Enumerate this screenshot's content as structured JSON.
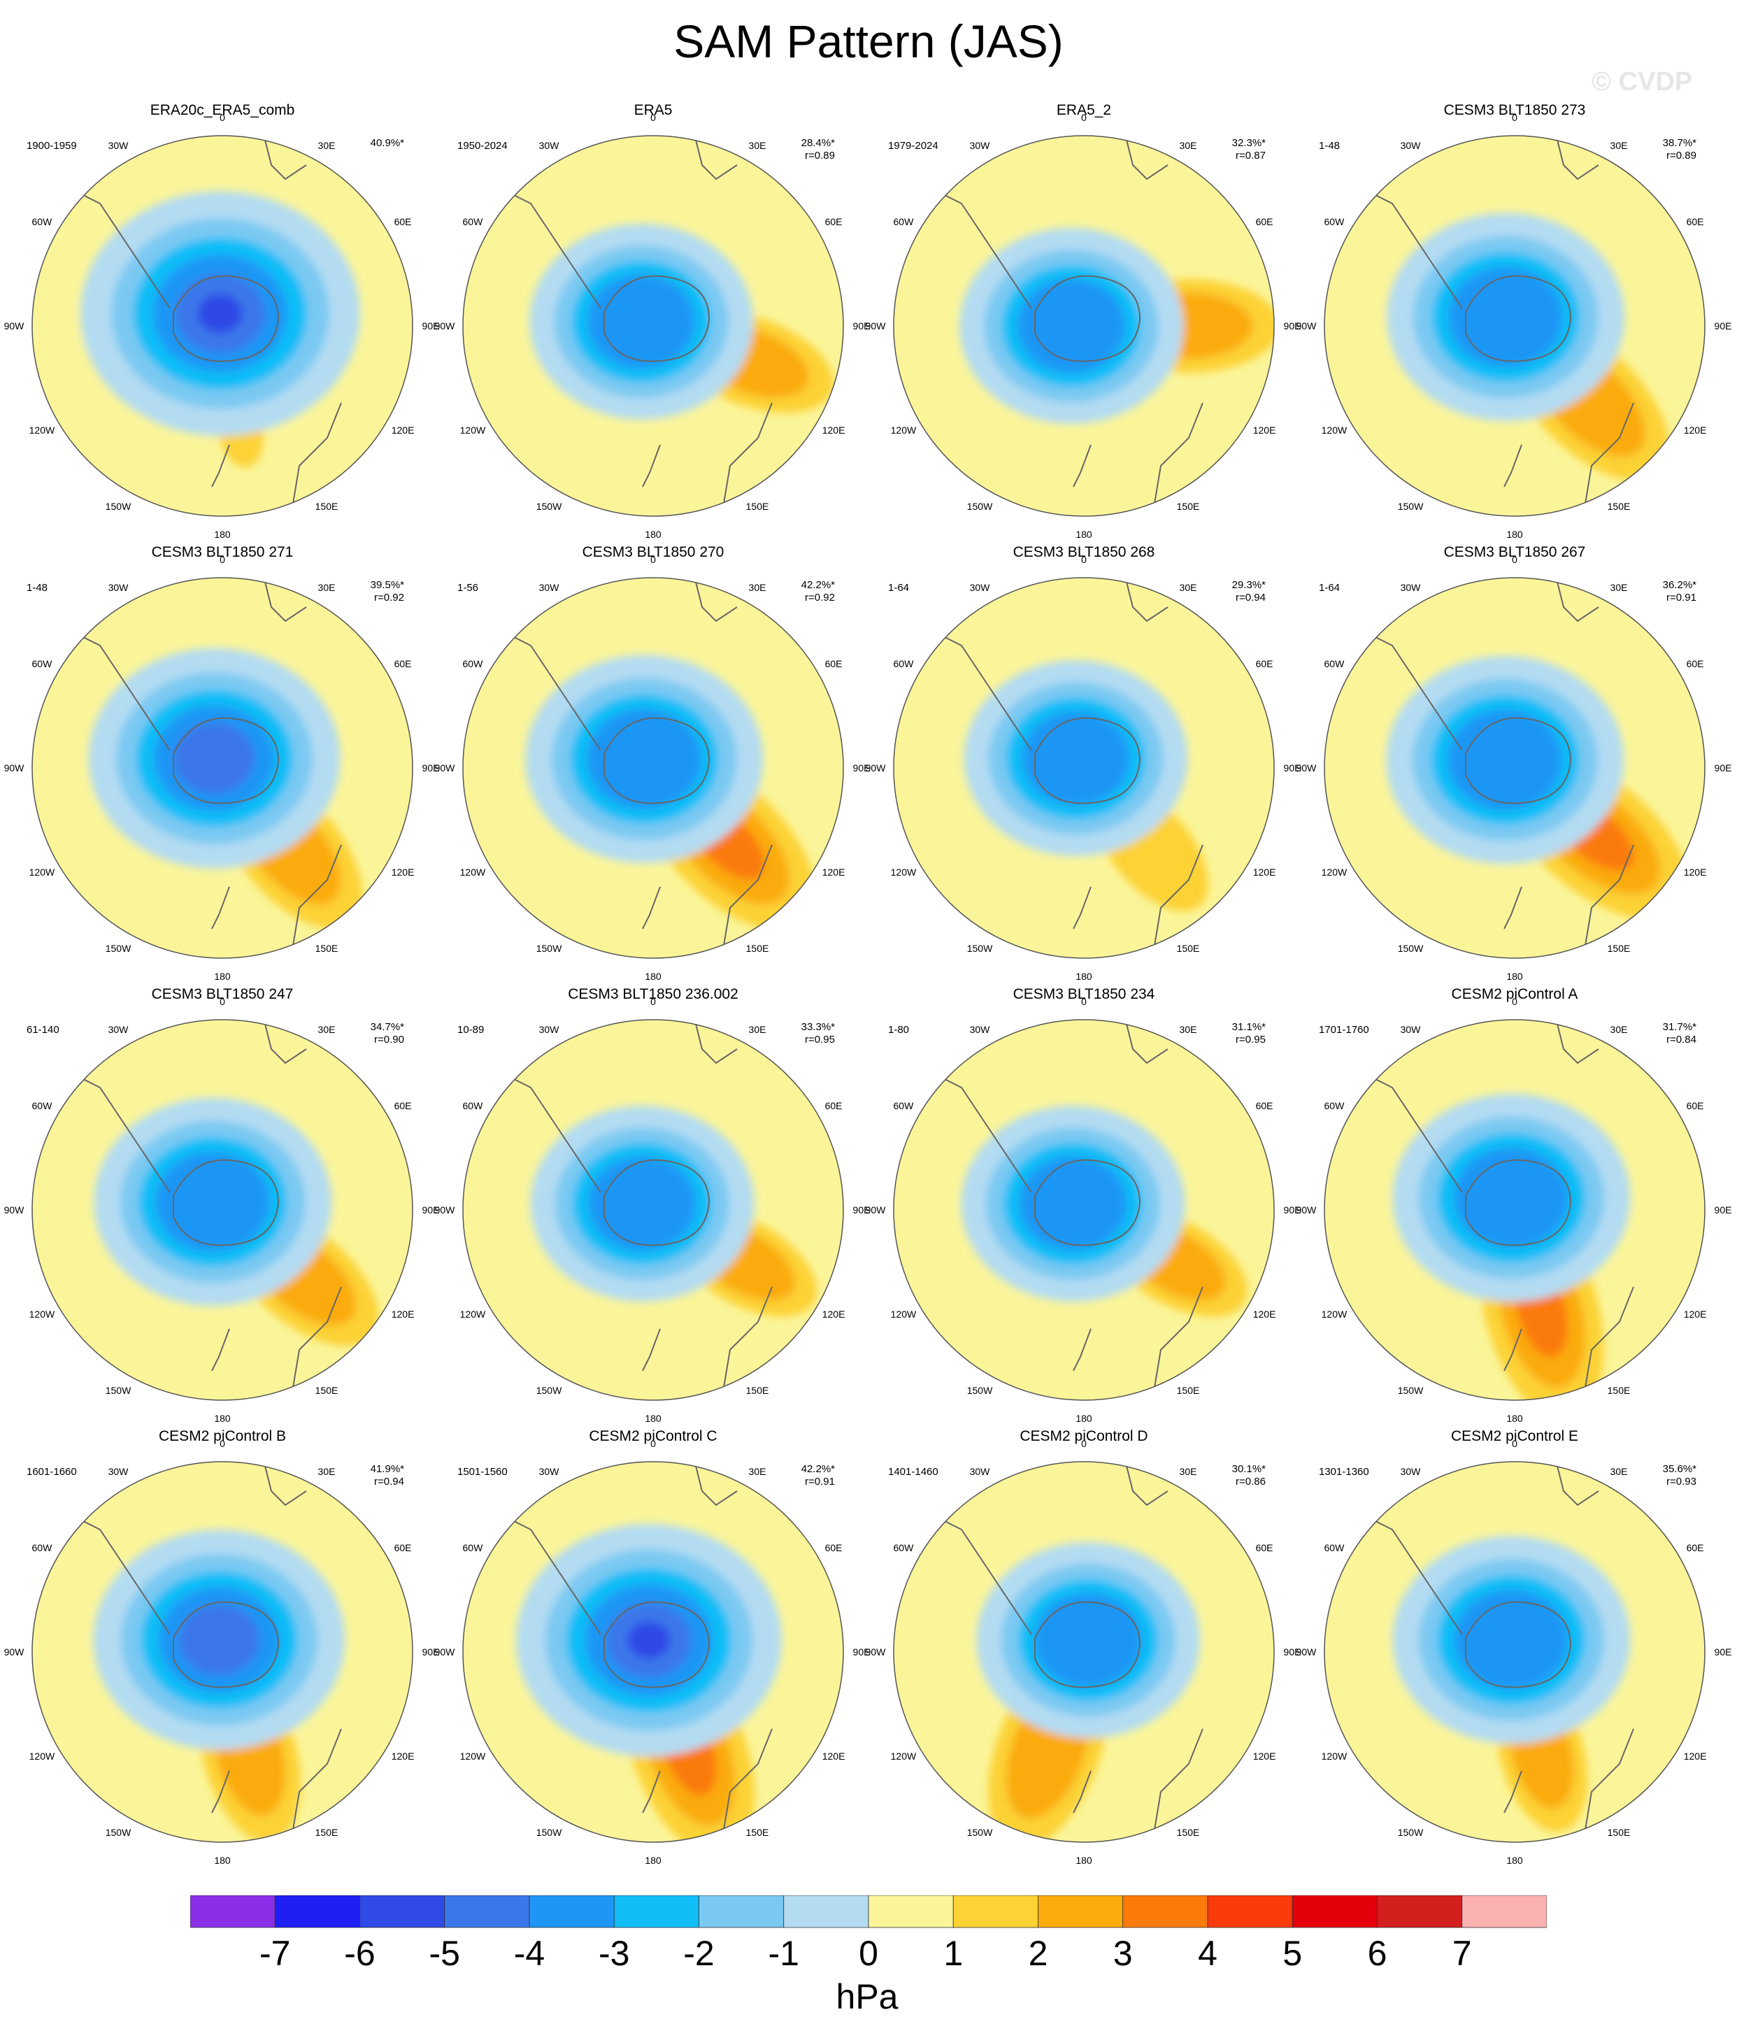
{
  "title": "SAM Pattern (JAS)",
  "watermark": "© CVDP",
  "lon_labels": [
    "0",
    "30E",
    "60E",
    "90E",
    "120E",
    "150E",
    "180",
    "150W",
    "120W",
    "90W",
    "60W",
    "30W"
  ],
  "panels": [
    {
      "title": "ERA20c_ERA5_comb",
      "period": "1900-1959",
      "pct": "40.9%*",
      "r": "",
      "blue": 1.0,
      "orange": 0.1,
      "ang": 170
    },
    {
      "title": "ERA5",
      "period": "1950-2024",
      "pct": "28.4%*",
      "r": "r=0.89",
      "blue": 0.8,
      "orange": 0.55,
      "ang": 110
    },
    {
      "title": "ERA5_2",
      "period": "1979-2024",
      "pct": "32.3%*",
      "r": "r=0.87",
      "blue": 0.8,
      "orange": 0.6,
      "ang": 90
    },
    {
      "title": "CESM3 BLT1850 273",
      "period": "1-48",
      "pct": "38.7%*",
      "r": "r=0.89",
      "blue": 0.85,
      "orange": 0.7,
      "ang": 135
    },
    {
      "title": "CESM3 BLT1850 271",
      "period": "1-48",
      "pct": "39.5%*",
      "r": "r=0.92",
      "blue": 0.9,
      "orange": 0.65,
      "ang": 140
    },
    {
      "title": "CESM3 BLT1850 270",
      "period": "1-56",
      "pct": "42.2%*",
      "r": "r=0.92",
      "blue": 0.85,
      "orange": 0.8,
      "ang": 135
    },
    {
      "title": "CESM3 BLT1850 268",
      "period": "1-64",
      "pct": "29.3%*",
      "r": "r=0.94",
      "blue": 0.8,
      "orange": 0.45,
      "ang": 140
    },
    {
      "title": "CESM3 BLT1850 267",
      "period": "1-64",
      "pct": "36.2%*",
      "r": "r=0.91",
      "blue": 0.85,
      "orange": 0.8,
      "ang": 130
    },
    {
      "title": "CESM3 BLT1850 247",
      "period": "61-140",
      "pct": "34.7%*",
      "r": "r=0.90",
      "blue": 0.85,
      "orange": 0.6,
      "ang": 130
    },
    {
      "title": "CESM3 BLT1850 236.002",
      "period": "10-89",
      "pct": "33.3%*",
      "r": "r=0.95",
      "blue": 0.8,
      "orange": 0.5,
      "ang": 120
    },
    {
      "title": "CESM3 BLT1850 234",
      "period": "1-80",
      "pct": "31.1%*",
      "r": "r=0.95",
      "blue": 0.8,
      "orange": 0.5,
      "ang": 120
    },
    {
      "title": "CESM2 piControl A",
      "period": "1701-1760",
      "pct": "31.7%*",
      "r": "r=0.84",
      "blue": 0.85,
      "orange": 0.8,
      "ang": 165
    },
    {
      "title": "CESM2 piControl B",
      "period": "1601-1660",
      "pct": "41.9%*",
      "r": "r=0.94",
      "blue": 0.9,
      "orange": 0.6,
      "ang": 165
    },
    {
      "title": "CESM2 piControl C",
      "period": "1501-1560",
      "pct": "42.2%*",
      "r": "r=0.91",
      "blue": 0.95,
      "orange": 0.8,
      "ang": 160
    },
    {
      "title": "CESM2 piControl D",
      "period": "1401-1460",
      "pct": "30.1%*",
      "r": "r=0.86",
      "blue": 0.8,
      "orange": 0.7,
      "ang": 200
    },
    {
      "title": "CESM2 piControl E",
      "period": "1301-1360",
      "pct": "35.6%*",
      "r": "r=0.93",
      "blue": 0.85,
      "orange": 0.5,
      "ang": 165
    }
  ],
  "colorbar": {
    "colors": [
      "#8b2ee8",
      "#1f1ff5",
      "#2f4ae6",
      "#3a77ea",
      "#1f96f5",
      "#10bdf7",
      "#7ac9f2",
      "#b3dcf2",
      "#fbf59a",
      "#fcd234",
      "#fbab0b",
      "#fb7a0a",
      "#fa3b0a",
      "#e4000a",
      "#d41f1f",
      "#fcb1b1"
    ],
    "labels": [
      "-7",
      "-6",
      "-5",
      "-4",
      "-3",
      "-2",
      "-1",
      "0",
      "1",
      "2",
      "3",
      "4",
      "5",
      "6",
      "7"
    ]
  },
  "units": "hPa"
}
